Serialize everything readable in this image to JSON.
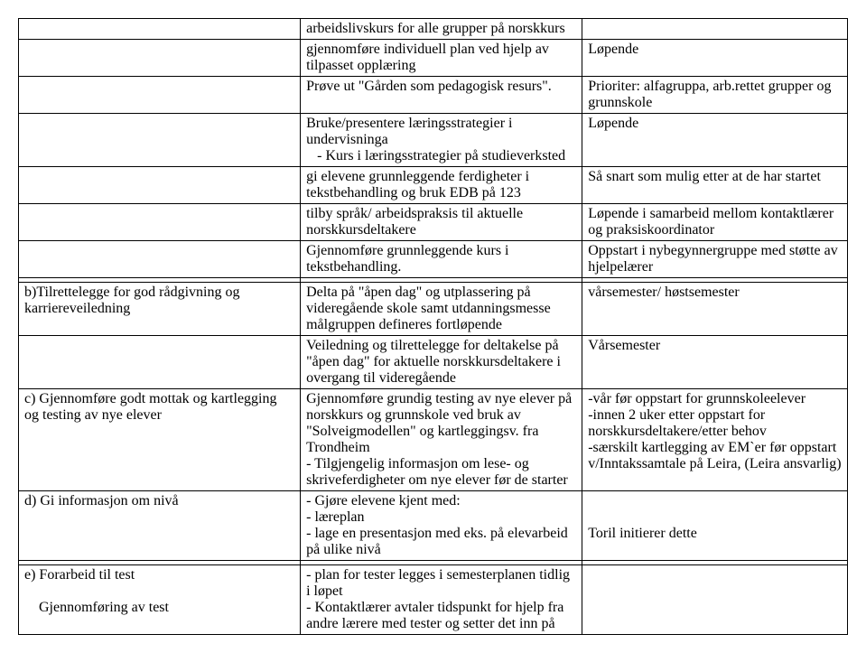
{
  "rows": [
    {
      "c1": "",
      "c2": "arbeidslivskurs for alle grupper på norskkurs",
      "c3": ""
    },
    {
      "c1": "",
      "c2": "gjennomføre individuell plan ved hjelp av tilpasset opplæring",
      "c3": "Løpende"
    },
    {
      "c1": "",
      "c2": "Prøve ut \"Gården som pedagogisk resurs\".",
      "c3": "Prioriter: alfagruppa, arb.rettet grupper og grunnskole"
    },
    {
      "c1": "",
      "c2": "Bruke/presentere læringsstrategier i undervisninga\n   -   Kurs i læringsstrategier på studieverksted",
      "c3": "Løpende"
    },
    {
      "c1": "",
      "c2": "gi elevene grunnleggende ferdigheter i tekstbehandling og bruk EDB på 123",
      "c3": "Så snart som mulig etter at de har startet"
    },
    {
      "c1": "",
      "c2": "tilby språk/ arbeidspraksis til aktuelle norskkursdeltakere",
      "c3": "Løpende i samarbeid mellom kontaktlærer og praksiskoordinator"
    },
    {
      "c1": "",
      "c2": "Gjennomføre grunnleggende kurs i tekstbehandling.",
      "c3": "Oppstart i nybegynnergruppe med støtte av hjelpelærer"
    },
    {
      "c1": "",
      "c2": "",
      "c3": ""
    },
    {
      "c1": "b)Tilrettelegge for god rådgivning og karriereveiledning",
      "c2": "Delta på \"åpen dag\" og utplassering på videregående skole samt utdanningsmesse målgruppen defineres fortløpende",
      "c3": "vårsemester/ høstsemester"
    },
    {
      "c1": "",
      "c2": "Veiledning og tilrettelegge for deltakelse på \"åpen dag\" for aktuelle norskkursdeltakere i overgang til videregående",
      "c3": "Vårsemester"
    },
    {
      "c1": "c) Gjennomføre godt mottak og kartlegging og testing av nye elever",
      "c2": "Gjennomføre grundig testing av nye elever på norskkurs og grunnskole ved bruk av \"Solveigmodellen\" og kartleggingsv. fra Trondheim\n- Tilgjengelig informasjon om lese- og skriveferdigheter om nye elever før de starter",
      "c3": "-vår før oppstart for grunnskoleelever\n-innen 2 uker etter oppstart for norskkursdeltakere/etter behov\n-særskilt kartlegging av EM`er før oppstart v/Inntakssamtale på Leira, (Leira ansvarlig)"
    },
    {
      "c1": "d) Gi informasjon om nivå",
      "c2": "- Gjøre elevene kjent med:\n- læreplan\n- lage en presentasjon med eks. på elevarbeid på ulike nivå",
      "c3": "\n\nToril initierer dette"
    },
    {
      "c1": "",
      "c2": "",
      "c3": ""
    },
    {
      "c1": "e) Forarbeid til test\n\n    Gjennomføring av test",
      "c2": "- plan for tester legges i semesterplanen tidlig i løpet\n- Kontaktlærer avtaler tidspunkt for hjelp fra andre lærere med tester og setter det inn på",
      "c3": ""
    }
  ]
}
